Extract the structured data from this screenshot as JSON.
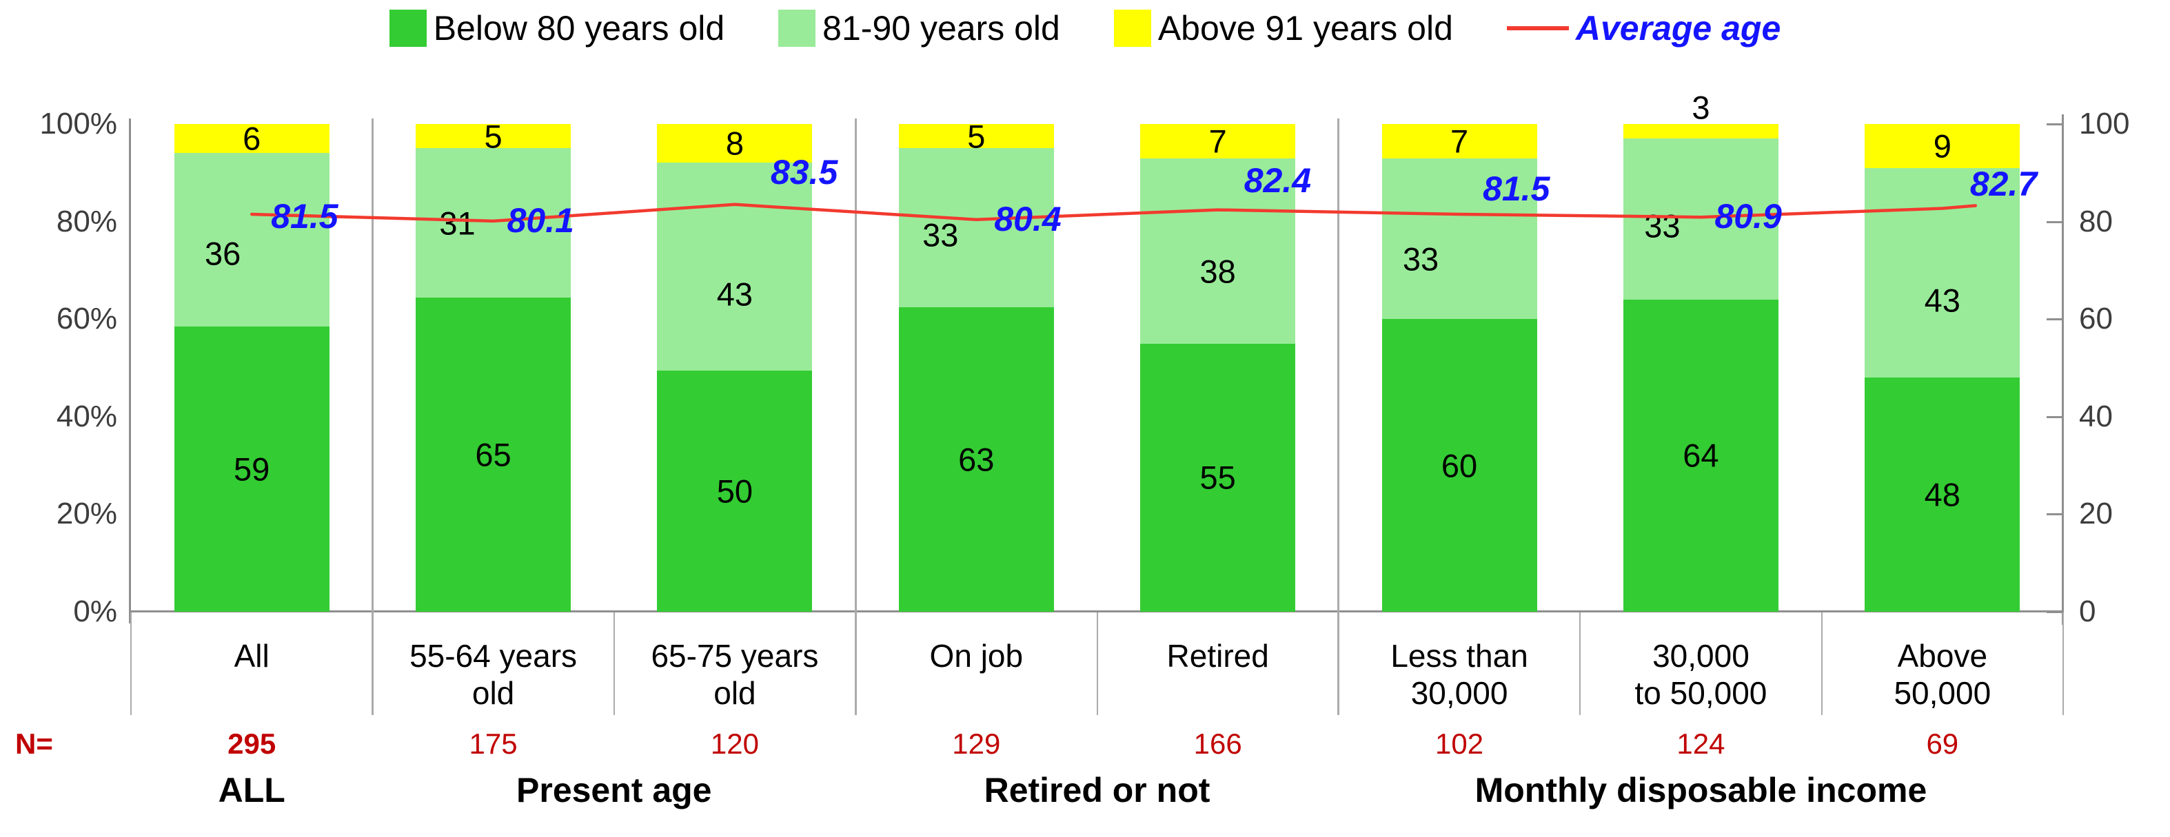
{
  "chart_data": {
    "type": "bar",
    "stacked": true,
    "percent_axis": true,
    "grid": false,
    "legend_position": "top",
    "categories": [
      "All",
      "55-64 years old",
      "65-75 years old",
      "On job",
      "Retired",
      "Less than 30,000",
      "30,000 to 50,000",
      "Above 50,000"
    ],
    "categories_lines": [
      [
        "All"
      ],
      [
        "55-64 years",
        "old"
      ],
      [
        "65-75 years",
        "old"
      ],
      [
        "On job"
      ],
      [
        "Retired"
      ],
      [
        "Less than",
        "30,000"
      ],
      [
        "30,000",
        "to 50,000"
      ],
      [
        "Above",
        "50,000"
      ]
    ],
    "series": [
      {
        "name": "Below 80 years old",
        "color": "#33CC33",
        "values": [
          59,
          65,
          50,
          63,
          55,
          60,
          64,
          48
        ]
      },
      {
        "name": "81-90 years old",
        "color": "#99EB99",
        "values": [
          36,
          31,
          43,
          33,
          38,
          33,
          33,
          43
        ]
      },
      {
        "name": "Above 91 years old",
        "color": "#FFFF00",
        "values": [
          6,
          5,
          8,
          5,
          7,
          7,
          3,
          9
        ]
      }
    ],
    "line_series": {
      "name": "Average age",
      "color": "#F23A2E",
      "label_color": "#1414FF",
      "values": [
        81.5,
        80.1,
        83.5,
        80.4,
        82.4,
        81.5,
        80.9,
        82.7
      ]
    },
    "n_row": {
      "label": "N=",
      "color": "#C00000",
      "values": [
        "295",
        "175",
        "120",
        "129",
        "166",
        "102",
        "124",
        "69"
      ]
    },
    "groups": [
      {
        "label": "ALL",
        "from": 0,
        "to": 0
      },
      {
        "label": "Present age",
        "from": 1,
        "to": 2
      },
      {
        "label": "Retired or not",
        "from": 3,
        "to": 4
      },
      {
        "label": "Monthly disposable income",
        "from": 5,
        "to": 7
      }
    ],
    "left_axis": {
      "tick_labels": [
        "0%",
        "20%",
        "40%",
        "60%",
        "80%",
        "100%"
      ],
      "min": 0,
      "max": 100
    },
    "right_axis": {
      "tick_labels": [
        "0",
        "20",
        "40",
        "60",
        "80",
        "100"
      ],
      "min": 0,
      "max": 100
    }
  }
}
